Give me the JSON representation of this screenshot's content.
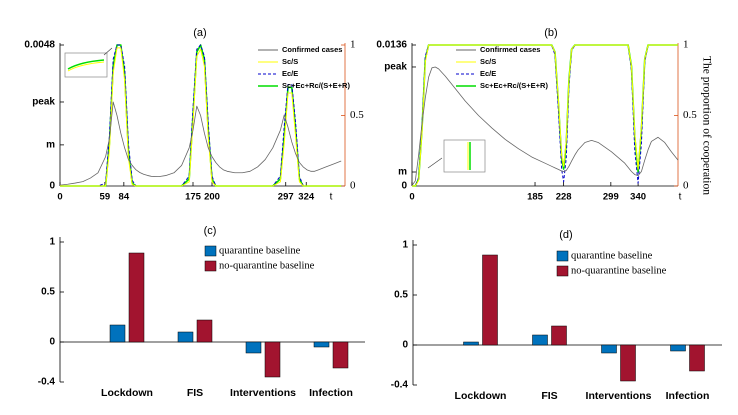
{
  "chart_data": [
    {
      "type": "line",
      "title": "(a)",
      "xlabel": "t",
      "xlim": [
        0,
        375
      ],
      "xticks": [
        0,
        59,
        84,
        175,
        200,
        297,
        324
      ],
      "ylim": [
        0,
        0.0048
      ],
      "yticks": [
        0,
        {
          "value": 0.0014,
          "label": "m"
        },
        {
          "value": 0.00286,
          "label": "peak"
        },
        0.0048
      ],
      "y2lim": [
        0,
        1
      ],
      "y2ticks": [
        0,
        0.5,
        1
      ],
      "y2color": "#d95319",
      "legend": "upper right",
      "x": [
        0,
        10,
        20,
        30,
        40,
        50,
        60,
        65,
        70,
        75,
        80,
        85,
        90,
        95,
        100,
        105,
        110,
        115,
        120,
        130,
        140,
        150,
        160,
        170,
        175,
        180,
        185,
        190,
        195,
        200,
        205,
        210,
        215,
        220,
        230,
        240,
        250,
        260,
        270,
        280,
        290,
        295,
        300,
        305,
        310,
        315,
        320,
        325,
        330,
        335,
        340,
        350,
        360,
        370
      ],
      "series": [
        {
          "name": "Confirmed cases",
          "color": "#666666",
          "values": [
            3e-05,
            6e-05,
            0.0001,
            0.00015,
            0.00027,
            0.00045,
            0.001,
            0.0016,
            0.00286,
            0.0024,
            0.0018,
            0.0013,
            0.0009,
            0.0007,
            0.00055,
            0.00046,
            0.0004,
            0.00036,
            0.00033,
            0.00032,
            0.00036,
            0.00045,
            0.0007,
            0.0013,
            0.0019,
            0.00272,
            0.0024,
            0.0018,
            0.0013,
            0.001,
            0.0008,
            0.00065,
            0.00055,
            0.0005,
            0.00045,
            0.00045,
            0.0005,
            0.00065,
            0.0009,
            0.0013,
            0.0019,
            0.00242,
            0.002,
            0.0015,
            0.0011,
            0.0008,
            0.00065,
            0.00055,
            0.0005,
            0.0005,
            0.00055,
            0.00065,
            0.00075,
            0.00085
          ]
        },
        {
          "name": "Sc/S",
          "color": "#ffff00",
          "axis": "y2",
          "values": [
            0,
            0,
            0,
            0,
            0,
            0,
            0,
            0.25,
            0.8,
            0.98,
            0.98,
            0.75,
            0.2,
            0.01,
            0,
            0,
            0,
            0,
            0,
            0,
            0,
            0,
            0,
            0.03,
            0.45,
            0.92,
            0.97,
            0.85,
            0.35,
            0.03,
            0,
            0,
            0,
            0,
            0,
            0,
            0,
            0,
            0,
            0,
            0.03,
            0.3,
            0.66,
            0.66,
            0.35,
            0.03,
            0,
            0,
            0,
            0,
            0,
            0,
            0,
            0
          ]
        },
        {
          "name": "Ec/E",
          "color": "#0000cc",
          "linestyle": "dashed",
          "axis": "y2",
          "values": [
            0,
            0,
            0,
            0,
            0,
            0,
            0.02,
            0.35,
            0.9,
            1,
            1,
            0.85,
            0.3,
            0.04,
            0,
            0,
            0,
            0,
            0,
            0,
            0,
            0,
            0,
            0.07,
            0.55,
            0.97,
            1,
            0.92,
            0.45,
            0.07,
            0,
            0,
            0,
            0,
            0,
            0,
            0,
            0,
            0,
            0,
            0.07,
            0.42,
            0.72,
            0.72,
            0.45,
            0.07,
            0,
            0,
            0,
            0,
            0,
            0,
            0,
            0
          ]
        },
        {
          "name": "Sc+Ec+Rc/(S+E+R)",
          "color": "#00dd00",
          "axis": "y2",
          "values": [
            0,
            0,
            0,
            0,
            0,
            0,
            0,
            0.3,
            0.85,
            1,
            1,
            0.8,
            0.25,
            0.02,
            0,
            0,
            0,
            0,
            0,
            0,
            0,
            0,
            0,
            0.05,
            0.5,
            0.95,
            1,
            0.9,
            0.4,
            0.05,
            0,
            0,
            0,
            0,
            0,
            0,
            0,
            0,
            0,
            0,
            0.05,
            0.35,
            0.7,
            0.7,
            0.4,
            0.05,
            0,
            0,
            0,
            0,
            0,
            0,
            0,
            0
          ]
        }
      ]
    },
    {
      "type": "line",
      "title": "(b)",
      "xlabel": "t",
      "y2label": "The proportion of cooperation",
      "xlim": [
        0,
        400
      ],
      "xticks": [
        0,
        185,
        228,
        299,
        340
      ],
      "ylim": [
        0,
        0.0136
      ],
      "yticks": [
        0,
        {
          "value": 0.00135,
          "label": "m"
        },
        {
          "value": 0.01148,
          "label": "peak"
        },
        0.0136
      ],
      "y2lim": [
        0,
        1
      ],
      "y2ticks": [
        0,
        0.5,
        1
      ],
      "y2color": "#d95319",
      "legend": "upper right",
      "x": [
        0,
        5,
        10,
        15,
        20,
        25,
        30,
        35,
        40,
        50,
        60,
        80,
        100,
        120,
        140,
        160,
        180,
        200,
        210,
        215,
        220,
        225,
        228,
        232,
        236,
        240,
        245,
        250,
        260,
        270,
        280,
        300,
        320,
        325,
        330,
        335,
        340,
        345,
        350,
        355,
        360,
        370,
        380,
        390,
        400
      ],
      "series": [
        {
          "name": "Confirmed cases",
          "color": "#666666",
          "values": [
            5e-05,
            0.0005,
            0.003,
            0.006,
            0.0085,
            0.0105,
            0.0114,
            0.01148,
            0.0113,
            0.0106,
            0.0098,
            0.0082,
            0.0068,
            0.0056,
            0.0045,
            0.0036,
            0.0028,
            0.0022,
            0.0019,
            0.00175,
            0.0016,
            0.00145,
            0.0014,
            0.0015,
            0.0019,
            0.0024,
            0.003,
            0.0035,
            0.0042,
            0.0044,
            0.0042,
            0.0033,
            0.0022,
            0.0018,
            0.0014,
            0.0011,
            0.001,
            0.0014,
            0.0025,
            0.0035,
            0.0043,
            0.0047,
            0.0042,
            0.0033,
            0.0025
          ]
        },
        {
          "name": "Sc/S",
          "color": "#ffff00",
          "axis": "y2",
          "values": [
            0,
            0,
            0.04,
            0.38,
            0.88,
            1,
            1,
            1,
            1,
            1,
            1,
            1,
            1,
            1,
            1,
            1,
            1,
            1,
            1,
            0.95,
            0.62,
            0.22,
            0.14,
            0.32,
            0.75,
            0.97,
            1,
            1,
            1,
            1,
            1,
            1,
            1,
            1,
            0.85,
            0.37,
            0.12,
            0.42,
            0.9,
            1,
            1,
            1,
            1,
            1,
            1
          ]
        },
        {
          "name": "Ec/E",
          "color": "#0000cc",
          "linestyle": "dashed",
          "axis": "y2",
          "values": [
            0,
            0,
            0.06,
            0.42,
            0.92,
            1,
            1,
            1,
            1,
            1,
            1,
            1,
            1,
            1,
            1,
            1,
            1,
            1,
            1,
            0.93,
            0.55,
            0.12,
            0.03,
            0.2,
            0.7,
            0.96,
            1,
            1,
            1,
            1,
            1,
            1,
            1,
            1,
            0.82,
            0.25,
            0.02,
            0.3,
            0.88,
            1,
            1,
            1,
            1,
            1,
            1
          ]
        },
        {
          "name": "Sc+Ec+Rc/(S+E+R)",
          "color": "#00dd00",
          "axis": "y2",
          "values": [
            0,
            0,
            0.05,
            0.4,
            0.9,
            1,
            1,
            1,
            1,
            1,
            1,
            1,
            1,
            1,
            1,
            1,
            1,
            1,
            1,
            0.95,
            0.6,
            0.2,
            0.12,
            0.3,
            0.75,
            0.97,
            1,
            1,
            1,
            1,
            1,
            1,
            1,
            1,
            0.85,
            0.35,
            0.1,
            0.4,
            0.9,
            1,
            1,
            1,
            1,
            1,
            1
          ]
        }
      ]
    },
    {
      "type": "bar",
      "title": "(c)",
      "legend": "upper center",
      "categories": [
        "Lockdown",
        "FIS",
        "Interventions",
        "Infection"
      ],
      "ylim": [
        -0.4,
        1.05
      ],
      "yticks": [
        -0.4,
        0,
        0.5,
        1
      ],
      "series": [
        {
          "name": "quarantine baseline",
          "color": "#0072bd",
          "values": [
            0.17,
            0.1,
            -0.11,
            -0.05
          ]
        },
        {
          "name": "no-quarantine baseline",
          "color": "#a2142f",
          "values": [
            0.89,
            0.22,
            -0.35,
            -0.26
          ]
        }
      ]
    },
    {
      "type": "bar",
      "title": "(d)",
      "legend": "upper center",
      "categories": [
        "Lockdown",
        "FIS",
        "Interventions",
        "Infection"
      ],
      "ylim": [
        -0.4,
        1.05
      ],
      "yticks": [
        -0.4,
        0,
        0.5,
        1
      ],
      "series": [
        {
          "name": "quarantine baseline",
          "color": "#0072bd",
          "values": [
            0.03,
            0.1,
            -0.08,
            -0.06
          ]
        },
        {
          "name": "no-quarantine baseline",
          "color": "#a2142f",
          "values": [
            0.9,
            0.19,
            -0.36,
            -0.26
          ]
        }
      ]
    }
  ]
}
